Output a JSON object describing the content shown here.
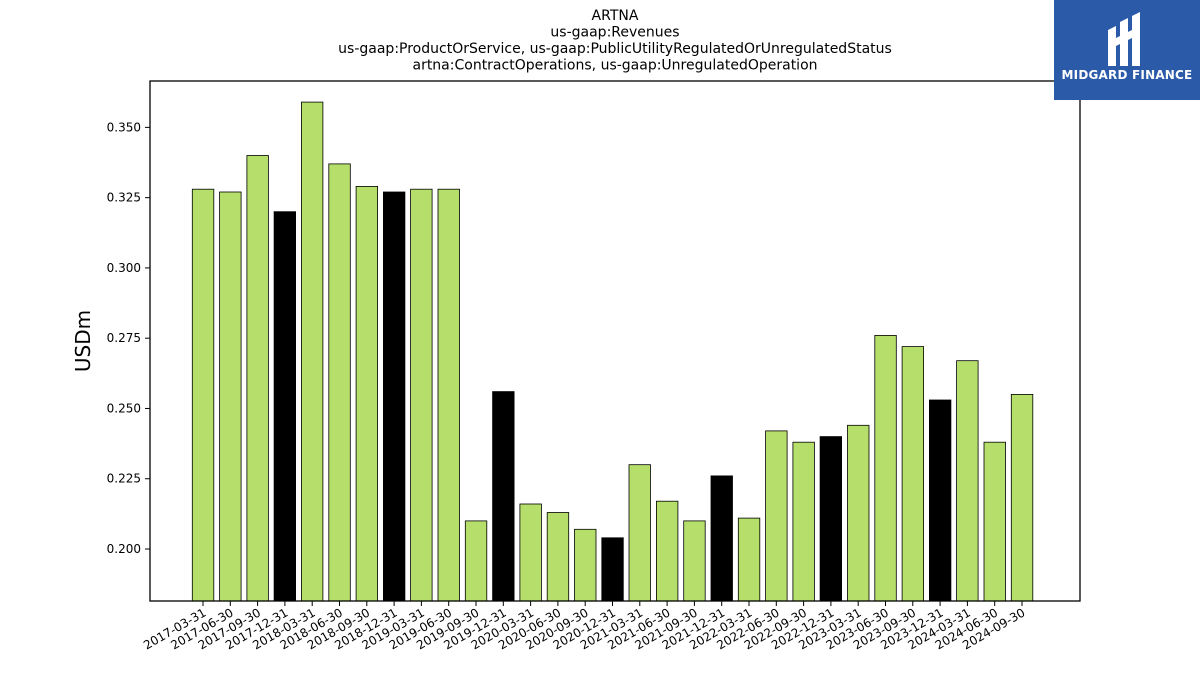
{
  "titles": [
    "ARTNA",
    "us-gaap:Revenues",
    "us-gaap:ProductOrService, us-gaap:PublicUtilityRegulatedOrUnregulatedStatus",
    "artna:ContractOperations, us-gaap:UnregulatedOperation"
  ],
  "logo": {
    "text": "MIDGARD FINANCE",
    "icon": "midgard-logo-icon"
  },
  "colors": {
    "quarter": "#b5df6a",
    "year_end": "#000000",
    "axis": "#000000"
  },
  "chart_data": {
    "type": "bar",
    "ylabel": "USDm",
    "ylim": [
      0.1815,
      0.3665
    ],
    "yticks": [
      "0.200",
      "0.225",
      "0.250",
      "0.275",
      "0.300",
      "0.325",
      "0.350"
    ],
    "categories": [
      "2017-03-31",
      "2017-06-30",
      "2017-09-30",
      "2017-12-31",
      "2018-03-31",
      "2018-06-30",
      "2018-09-30",
      "2018-12-31",
      "2019-03-31",
      "2019-06-30",
      "2019-09-30",
      "2019-12-31",
      "2020-03-31",
      "2020-06-30",
      "2020-09-30",
      "2020-12-31",
      "2021-03-31",
      "2021-06-30",
      "2021-09-30",
      "2021-12-31",
      "2022-03-31",
      "2022-06-30",
      "2022-09-30",
      "2022-12-31",
      "2023-03-31",
      "2023-06-30",
      "2023-09-30",
      "2023-12-31",
      "2024-03-31",
      "2024-06-30",
      "2024-09-30"
    ],
    "values": [
      0.328,
      0.327,
      0.34,
      0.32,
      0.359,
      0.337,
      0.329,
      0.327,
      0.328,
      0.328,
      0.21,
      0.256,
      0.216,
      0.213,
      0.207,
      0.204,
      0.23,
      0.217,
      0.21,
      0.226,
      0.211,
      0.242,
      0.238,
      0.24,
      0.244,
      0.276,
      0.272,
      0.253,
      0.267,
      0.238,
      0.255
    ],
    "year_end_flags": [
      false,
      false,
      false,
      true,
      false,
      false,
      false,
      true,
      false,
      false,
      false,
      true,
      false,
      false,
      false,
      true,
      false,
      false,
      false,
      true,
      false,
      false,
      false,
      true,
      false,
      false,
      false,
      true,
      false,
      false,
      false
    ]
  }
}
